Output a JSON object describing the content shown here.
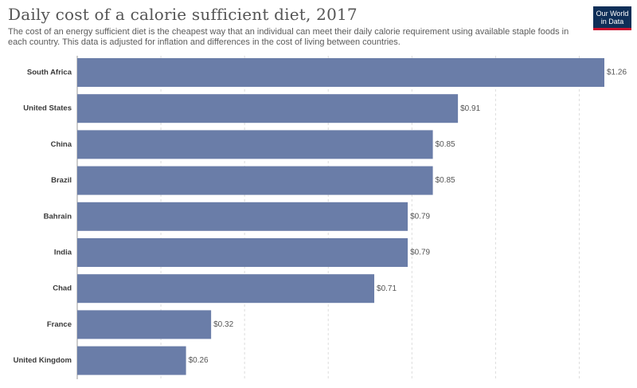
{
  "header": {
    "title": "Daily cost of a calorie sufficient diet, 2017",
    "subtitle": "The cost of an energy sufficient diet is the cheapest way that an individual can meet their daily calorie requirement using available staple foods in each country. This data is adjusted for inflation and differences in the cost of living between countries."
  },
  "logo": {
    "line1": "Our World",
    "line2": "in Data"
  },
  "chart_data": {
    "type": "bar",
    "orientation": "horizontal",
    "categories": [
      "South Africa",
      "United States",
      "China",
      "Brazil",
      "Bahrain",
      "India",
      "Chad",
      "France",
      "United Kingdom"
    ],
    "values": [
      1.26,
      0.91,
      0.85,
      0.85,
      0.79,
      0.79,
      0.71,
      0.32,
      0.26
    ],
    "value_labels": [
      "$1.26",
      "$0.91",
      "$0.85",
      "$0.85",
      "$0.79",
      "$0.79",
      "$0.71",
      "$0.32",
      "$0.26"
    ],
    "xlim": [
      0,
      1.26
    ],
    "grid": "vertical dashed",
    "bar_color": "#6a7da8",
    "title": "Daily cost of a calorie sufficient diet, 2017"
  }
}
